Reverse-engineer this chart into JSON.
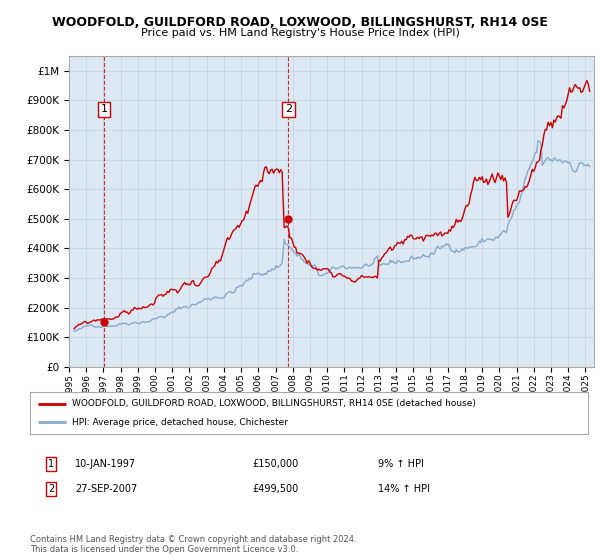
{
  "title1": "WOODFOLD, GUILDFORD ROAD, LOXWOOD, BILLINGSHURST, RH14 0SE",
  "title2": "Price paid vs. HM Land Registry's House Price Index (HPI)",
  "ylabel_ticks": [
    "£0",
    "£100K",
    "£200K",
    "£300K",
    "£400K",
    "£500K",
    "£600K",
    "£700K",
    "£800K",
    "£900K",
    "£1M"
  ],
  "ytick_vals": [
    0,
    100000,
    200000,
    300000,
    400000,
    500000,
    600000,
    700000,
    800000,
    900000,
    1000000
  ],
  "ylim": [
    0,
    1050000
  ],
  "xlim_start": 1995.25,
  "xlim_end": 2025.5,
  "xtick_years": [
    1995,
    1996,
    1997,
    1998,
    1999,
    2000,
    2001,
    2002,
    2003,
    2004,
    2005,
    2006,
    2007,
    2008,
    2009,
    2010,
    2011,
    2012,
    2013,
    2014,
    2015,
    2016,
    2017,
    2018,
    2019,
    2020,
    2021,
    2022,
    2023,
    2024,
    2025
  ],
  "grid_color": "#c8d8e8",
  "plot_bg": "#dce8f4",
  "sale1_x": 1997.04,
  "sale1_y": 150000,
  "sale2_x": 2007.74,
  "sale2_y": 499500,
  "marker_color": "#cc0000",
  "line_color_red": "#cc0000",
  "line_color_blue": "#88aacc",
  "legend_label_red": "WOODFOLD, GUILDFORD ROAD, LOXWOOD, BILLINGSHURST, RH14 0SE (detached house)",
  "legend_label_blue": "HPI: Average price, detached house, Chichester",
  "annotation1_label": "1",
  "annotation2_label": "2",
  "ann1_date": "10-JAN-1997",
  "ann1_price": "£150,000",
  "ann1_hpi": "9% ↑ HPI",
  "ann2_date": "27-SEP-2007",
  "ann2_price": "£499,500",
  "ann2_hpi": "14% ↑ HPI",
  "footnote": "Contains HM Land Registry data © Crown copyright and database right 2024.\nThis data is licensed under the Open Government Licence v3.0."
}
